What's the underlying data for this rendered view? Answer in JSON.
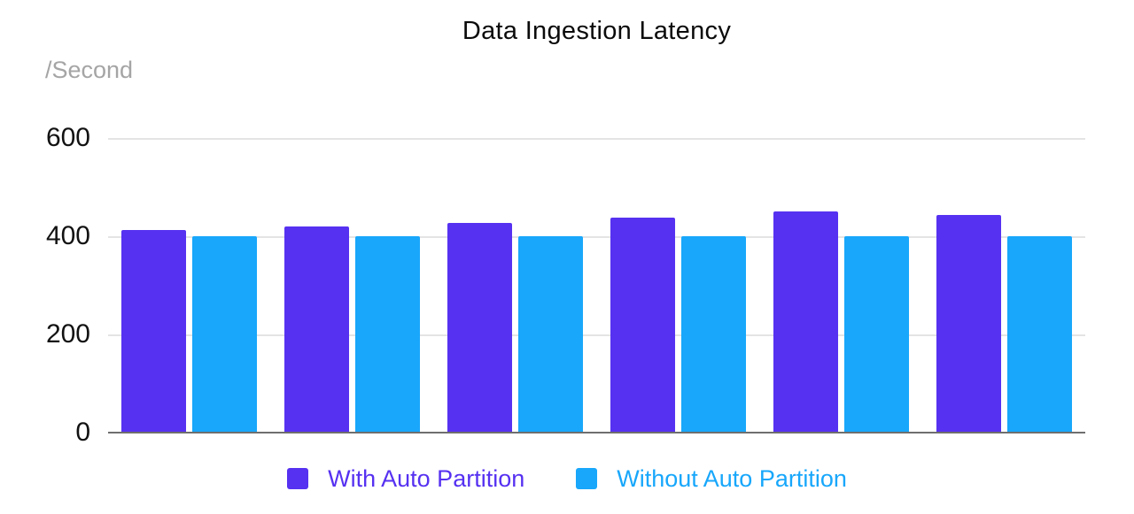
{
  "title": "Data Ingestion Latency",
  "y_axis": {
    "unit_label": "/Second",
    "ticks": [
      600,
      400,
      200,
      0
    ]
  },
  "legend": [
    {
      "label": "With Auto Partition",
      "color": "#5631f1"
    },
    {
      "label": "Without Auto Partition",
      "color": "#18a7fb"
    }
  ],
  "colors": {
    "purple_series": "#5631f1",
    "cyan_series": "#18a7fb",
    "gridline": "#e4e4e4",
    "axis_line": "#6e6e6e",
    "tick_text": "#121212",
    "unit_label_text": "#a5a5a5",
    "title_text": "#0b0b0b"
  },
  "chart_data": {
    "type": "bar",
    "title": "Data Ingestion Latency",
    "ylabel": "/Second",
    "xlabel": "",
    "ylim": [
      0,
      600
    ],
    "yticks": [
      0,
      200,
      400,
      600
    ],
    "grid": true,
    "legend_position": "bottom",
    "group_count": 6,
    "series": [
      {
        "name": "With Auto Partition",
        "color": "#5631f1",
        "values": [
          412,
          420,
          428,
          438,
          450,
          444
        ]
      },
      {
        "name": "Without Auto Partition",
        "color": "#18a7fb",
        "values": [
          400,
          400,
          400,
          400,
          400,
          400
        ]
      }
    ]
  }
}
